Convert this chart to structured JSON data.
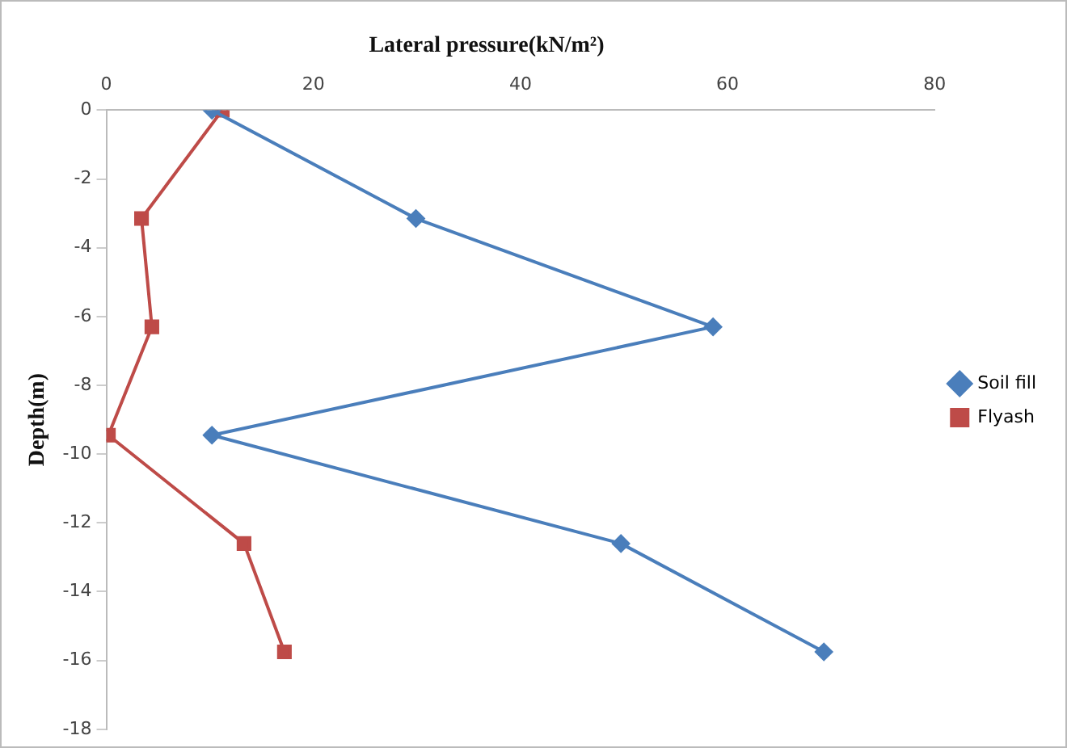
{
  "chart_data": {
    "type": "line",
    "title": "Lateral pressure(kN/m²)",
    "ylabel": "Depth(m)",
    "xlim": [
      0,
      80
    ],
    "xticks": [
      0,
      20,
      40,
      60,
      80
    ],
    "ylim": [
      -18,
      0
    ],
    "yticks": [
      0,
      -2,
      -4,
      -6,
      -8,
      -10,
      -12,
      -14,
      -16,
      -18
    ],
    "grid": false,
    "legend": "right",
    "line_style": "solid",
    "series": [
      {
        "name": "Soil fill",
        "color": "#4a7ebb",
        "marker": "diamond",
        "x": [
          10.2,
          29.9,
          58.6,
          10.2,
          49.7,
          69.3
        ],
        "values": [
          0,
          -3.15,
          -6.3,
          -9.45,
          -12.6,
          -15.75
        ]
      },
      {
        "name": "Flyash",
        "color": "#be4b48",
        "marker": "square",
        "x": [
          11.2,
          3.4,
          4.4,
          0.2,
          13.3,
          17.2
        ],
        "values": [
          0,
          -3.15,
          -6.3,
          -9.45,
          -12.6,
          -15.75
        ]
      }
    ]
  }
}
